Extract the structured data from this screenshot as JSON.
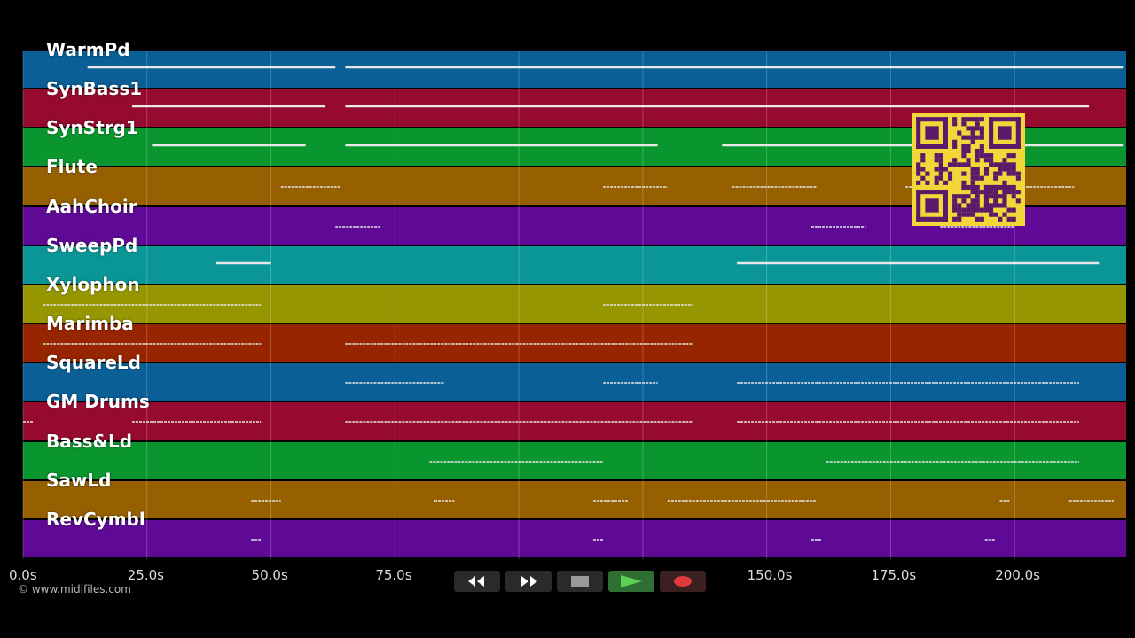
{
  "tracks": [
    {
      "name": "WarmPd",
      "color": "#0a5f96"
    },
    {
      "name": "SynBass1",
      "color": "#960a2f"
    },
    {
      "name": "SynStrg1",
      "color": "#0a962f"
    },
    {
      "name": "Flute",
      "color": "#966000"
    },
    {
      "name": "AahChoir",
      "color": "#5f0a96"
    },
    {
      "name": "SweepPd",
      "color": "#0a9696"
    },
    {
      "name": "Xylophon",
      "color": "#969600"
    },
    {
      "name": "Marimba",
      "color": "#962500"
    },
    {
      "name": "SquareLd",
      "color": "#0a5f96"
    },
    {
      "name": "GM Drums",
      "color": "#960a2f"
    },
    {
      "name": "Bass&Ld",
      "color": "#0a962f"
    },
    {
      "name": "SawLd",
      "color": "#966000"
    },
    {
      "name": "RevCymbl",
      "color": "#5f0a96"
    }
  ],
  "timeline": {
    "ticks": [
      "0.0s",
      "25.0s",
      "50.0s",
      "75.0s",
      "150.0s",
      "175.0s",
      "200.0s"
    ],
    "tick_seconds": [
      0,
      25,
      50,
      75,
      150,
      175,
      200
    ],
    "duration_seconds": 222.5
  },
  "copyright": "© www.midifiles.com",
  "transport": {
    "rewind_icon": "rewind-icon",
    "forward_icon": "fast-forward-icon",
    "stop_icon": "stop-icon",
    "play_icon": "play-icon",
    "record_icon": "record-icon",
    "play_color": "#5fcf4f",
    "record_color": "#e03a3a"
  },
  "qr_color": "#f5d63a",
  "note_segments": [
    [
      [
        13,
        63
      ],
      [
        65,
        222
      ]
    ],
    [
      [
        22,
        61
      ],
      [
        65,
        215
      ]
    ],
    [
      [
        26,
        57
      ],
      [
        65,
        128
      ],
      [
        141,
        222
      ]
    ],
    [
      [
        52,
        64
      ],
      [
        117,
        130
      ],
      [
        143,
        160
      ],
      [
        178,
        212
      ]
    ],
    [
      [
        63,
        72
      ],
      [
        159,
        170
      ],
      [
        185,
        200
      ]
    ],
    [
      [
        39,
        50
      ],
      [
        144,
        217
      ]
    ],
    [
      [
        4,
        48
      ],
      [
        117,
        135
      ]
    ],
    [
      [
        4,
        48
      ],
      [
        65,
        135
      ]
    ],
    [
      [
        65,
        85
      ],
      [
        117,
        128
      ],
      [
        144,
        213
      ]
    ],
    [
      [
        0,
        2
      ],
      [
        22,
        48
      ],
      [
        65,
        135
      ],
      [
        144,
        213
      ]
    ],
    [
      [
        82,
        117
      ],
      [
        162,
        213
      ]
    ],
    [
      [
        46,
        52
      ],
      [
        83,
        87
      ],
      [
        115,
        122
      ],
      [
        130,
        160
      ],
      [
        197,
        199
      ],
      [
        211,
        220
      ]
    ],
    [
      [
        46,
        48
      ],
      [
        115,
        117
      ],
      [
        159,
        161
      ],
      [
        194,
        196
      ]
    ]
  ]
}
